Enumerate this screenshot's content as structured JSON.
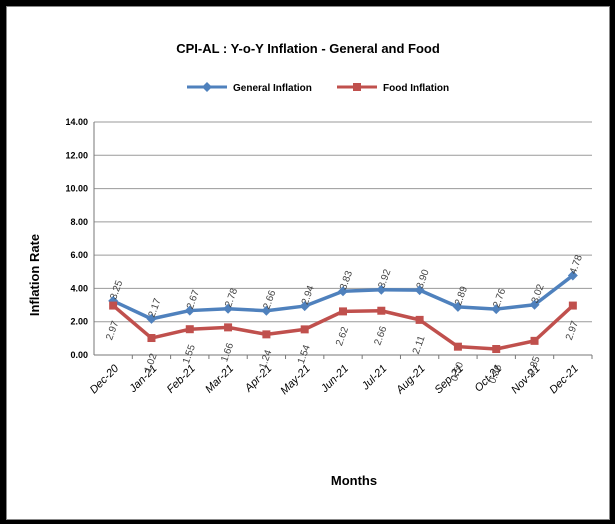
{
  "chart_data": {
    "type": "line",
    "title": "CPI-AL : Y-o-Y Inflation - General and Food",
    "xlabel": "Months",
    "ylabel": "Inflation Rate",
    "ylim": [
      0,
      14
    ],
    "yticks": [
      "0.00",
      "2.00",
      "4.00",
      "6.00",
      "8.00",
      "10.00",
      "12.00",
      "14.00"
    ],
    "categories": [
      "Dec-20",
      "Jan-21",
      "Feb-21",
      "Mar-21",
      "Apr-21",
      "May-21",
      "Jun-21",
      "Jul-21",
      "Aug-21",
      "Sep-21",
      "Oct-21",
      "Nov-21",
      "Dec-21"
    ],
    "grid": true,
    "legend_position": "top",
    "series": [
      {
        "name": "General Inflation",
        "color": "#4F81BD",
        "marker": "diamond",
        "values": [
          3.25,
          2.17,
          2.67,
          2.78,
          2.66,
          2.94,
          3.83,
          3.92,
          3.9,
          2.89,
          2.76,
          3.02,
          4.78
        ],
        "labels": [
          "3.25",
          "2.17",
          "2.67",
          "2.78",
          "2.66",
          "2.94",
          "3.83",
          "3.92",
          "3.90",
          "2.89",
          "2.76",
          "3.02",
          "4.78"
        ]
      },
      {
        "name": "Food Inflation",
        "color": "#C0504D",
        "marker": "square",
        "values": [
          2.97,
          1.02,
          1.55,
          1.66,
          1.24,
          1.54,
          2.62,
          2.66,
          2.11,
          0.5,
          0.36,
          0.85,
          2.97
        ],
        "labels": [
          "2.97",
          "1.02",
          "1.55",
          "1.66",
          "1.24",
          "1.54",
          "2.62",
          "2.66",
          "2.11",
          "0.50",
          "0.36",
          "0.85",
          "2.97"
        ]
      }
    ]
  }
}
